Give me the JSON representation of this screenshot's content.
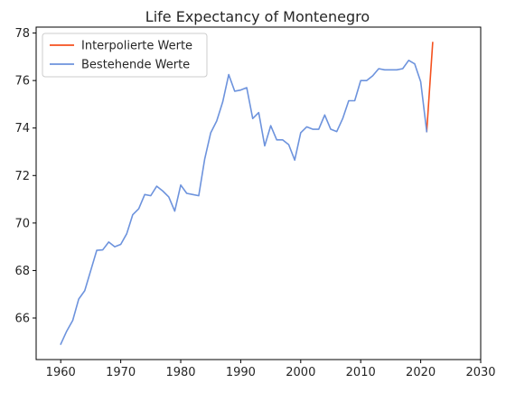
{
  "chart_data": {
    "type": "line",
    "title": "Life Expectancy of Montenegro",
    "xlabel": "",
    "ylabel": "",
    "xlim": [
      1955.9,
      2030
    ],
    "ylim": [
      64.25,
      78.25
    ],
    "xticks": [
      1960,
      1970,
      1980,
      1990,
      2000,
      2010,
      2020,
      2030
    ],
    "yticks": [
      66,
      68,
      70,
      72,
      74,
      76,
      78
    ],
    "grid": false,
    "legend_position": "top-left",
    "series": [
      {
        "name": "Interpolierte Werte",
        "color": "#f4511e",
        "x": [
          2021,
          2022
        ],
        "y": [
          73.85,
          77.6
        ]
      },
      {
        "name": "Bestehende Werte",
        "color": "#6d93dd",
        "x": [
          1960,
          1961,
          1962,
          1963,
          1964,
          1965,
          1966,
          1967,
          1968,
          1969,
          1970,
          1971,
          1972,
          1973,
          1974,
          1975,
          1976,
          1977,
          1978,
          1979,
          1980,
          1981,
          1982,
          1983,
          1984,
          1985,
          1986,
          1987,
          1988,
          1989,
          1990,
          1991,
          1992,
          1993,
          1994,
          1995,
          1996,
          1997,
          1998,
          1999,
          2000,
          2001,
          2002,
          2003,
          2004,
          2005,
          2006,
          2007,
          2008,
          2009,
          2010,
          2011,
          2012,
          2013,
          2014,
          2015,
          2016,
          2017,
          2018,
          2019,
          2020,
          2021
        ],
        "y": [
          64.9,
          65.45,
          65.9,
          66.8,
          67.15,
          68.0,
          68.85,
          68.87,
          69.2,
          69.0,
          69.1,
          69.55,
          70.35,
          70.6,
          71.2,
          71.15,
          71.55,
          71.35,
          71.1,
          70.5,
          71.6,
          71.25,
          71.2,
          71.15,
          72.7,
          73.8,
          74.3,
          75.1,
          76.25,
          75.55,
          75.6,
          75.7,
          74.4,
          74.65,
          73.25,
          74.1,
          73.5,
          73.5,
          73.3,
          72.65,
          73.8,
          74.05,
          73.95,
          73.95,
          74.55,
          73.95,
          73.85,
          74.4,
          75.15,
          75.15,
          76.0,
          76.0,
          76.2,
          76.5,
          76.45,
          76.45,
          76.45,
          76.5,
          76.85,
          76.7,
          75.95,
          73.85
        ]
      }
    ]
  }
}
